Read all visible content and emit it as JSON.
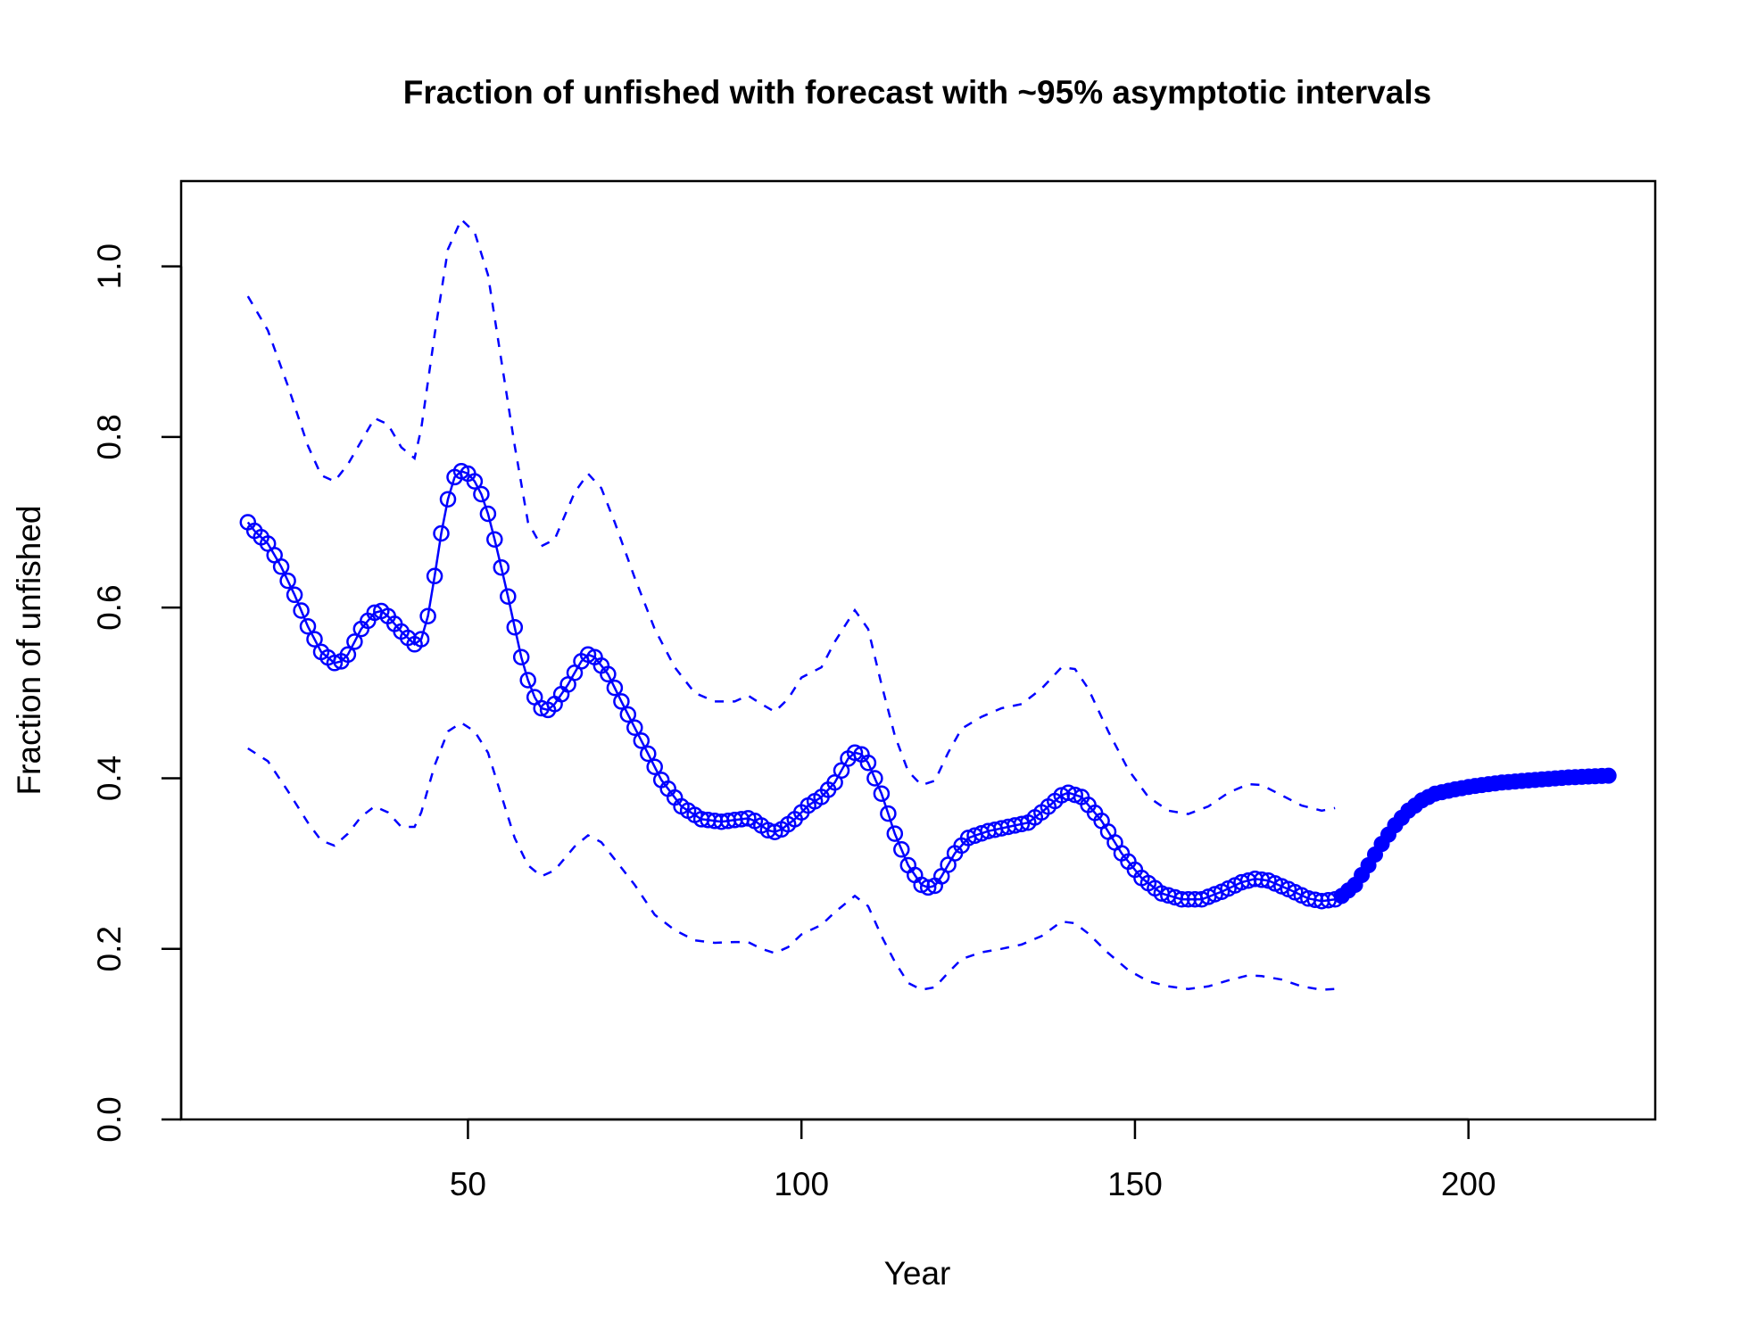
{
  "chart_data": {
    "type": "line",
    "title": "Fraction of unfished with forecast with ~95% asymptotic intervals",
    "xlabel": "Year",
    "ylabel": "Fraction of unfished",
    "xlim": [
      7,
      228
    ],
    "ylim": [
      0,
      1.1
    ],
    "x_ticks": [
      50,
      100,
      150,
      200
    ],
    "x_tick_labels": [
      "50",
      "100",
      "150",
      "200"
    ],
    "y_ticks": [
      0,
      0.2,
      0.4,
      0.6,
      0.8,
      1.0
    ],
    "y_tick_labels": [
      "0.0",
      "0.2",
      "0.4",
      "0.6",
      "0.8",
      "1.0"
    ],
    "grid": false,
    "color": "#0000FF",
    "series": [
      {
        "role": "estimate",
        "style": "line with open circles",
        "x_start": 17,
        "x_end": 180,
        "key_points": [
          [
            17,
            0.7
          ],
          [
            18,
            0.69
          ],
          [
            20,
            0.675
          ],
          [
            22,
            0.648
          ],
          [
            24,
            0.615
          ],
          [
            26,
            0.578
          ],
          [
            28,
            0.548
          ],
          [
            30,
            0.535
          ],
          [
            31,
            0.537
          ],
          [
            32,
            0.545
          ],
          [
            34,
            0.575
          ],
          [
            36,
            0.594
          ],
          [
            37,
            0.596
          ],
          [
            38,
            0.59
          ],
          [
            40,
            0.572
          ],
          [
            42,
            0.557
          ],
          [
            43,
            0.563
          ],
          [
            44,
            0.59
          ],
          [
            45,
            0.637
          ],
          [
            46,
            0.687
          ],
          [
            47,
            0.727
          ],
          [
            48,
            0.753
          ],
          [
            49,
            0.76
          ],
          [
            50,
            0.757
          ],
          [
            51,
            0.748
          ],
          [
            52,
            0.733
          ],
          [
            53,
            0.71
          ],
          [
            54,
            0.68
          ],
          [
            55,
            0.647
          ],
          [
            56,
            0.613
          ],
          [
            57,
            0.577
          ],
          [
            58,
            0.542
          ],
          [
            59,
            0.515
          ],
          [
            60,
            0.495
          ],
          [
            61,
            0.482
          ],
          [
            62,
            0.48
          ],
          [
            63,
            0.487
          ],
          [
            65,
            0.51
          ],
          [
            67,
            0.537
          ],
          [
            68,
            0.545
          ],
          [
            69,
            0.542
          ],
          [
            71,
            0.522
          ],
          [
            73,
            0.49
          ],
          [
            76,
            0.444
          ],
          [
            79,
            0.398
          ],
          [
            82,
            0.367
          ],
          [
            85,
            0.352
          ],
          [
            88,
            0.349
          ],
          [
            91,
            0.352
          ],
          [
            92,
            0.353
          ],
          [
            93,
            0.35
          ],
          [
            95,
            0.339
          ],
          [
            96,
            0.337
          ],
          [
            97,
            0.34
          ],
          [
            99,
            0.352
          ],
          [
            101,
            0.368
          ],
          [
            103,
            0.378
          ],
          [
            105,
            0.395
          ],
          [
            107,
            0.423
          ],
          [
            108,
            0.43
          ],
          [
            109,
            0.428
          ],
          [
            110,
            0.418
          ],
          [
            112,
            0.382
          ],
          [
            114,
            0.335
          ],
          [
            116,
            0.298
          ],
          [
            118,
            0.275
          ],
          [
            119,
            0.272
          ],
          [
            120,
            0.274
          ],
          [
            121,
            0.285
          ],
          [
            123,
            0.312
          ],
          [
            125,
            0.33
          ],
          [
            128,
            0.338
          ],
          [
            131,
            0.343
          ],
          [
            134,
            0.348
          ],
          [
            136,
            0.36
          ],
          [
            139,
            0.38
          ],
          [
            140,
            0.383
          ],
          [
            142,
            0.378
          ],
          [
            145,
            0.35
          ],
          [
            148,
            0.312
          ],
          [
            151,
            0.283
          ],
          [
            154,
            0.265
          ],
          [
            157,
            0.258
          ],
          [
            160,
            0.258
          ],
          [
            163,
            0.267
          ],
          [
            166,
            0.278
          ],
          [
            168,
            0.282
          ],
          [
            170,
            0.28
          ],
          [
            173,
            0.27
          ],
          [
            176,
            0.259
          ],
          [
            178,
            0.256
          ],
          [
            180,
            0.258
          ]
        ]
      },
      {
        "role": "forecast",
        "style": "filled points",
        "x_start": 181,
        "x_end": 221,
        "key_points": [
          [
            181,
            0.262
          ],
          [
            183,
            0.275
          ],
          [
            185,
            0.298
          ],
          [
            187,
            0.323
          ],
          [
            189,
            0.345
          ],
          [
            191,
            0.362
          ],
          [
            193,
            0.374
          ],
          [
            195,
            0.382
          ],
          [
            198,
            0.387
          ],
          [
            201,
            0.391
          ],
          [
            205,
            0.395
          ],
          [
            210,
            0.398
          ],
          [
            215,
            0.401
          ],
          [
            221,
            0.403
          ]
        ]
      },
      {
        "role": "upper interval (~97.5%)",
        "style": "dashed line",
        "key_points": [
          [
            17,
            0.965
          ],
          [
            20,
            0.925
          ],
          [
            23,
            0.86
          ],
          [
            26,
            0.79
          ],
          [
            28,
            0.755
          ],
          [
            30,
            0.748
          ],
          [
            32,
            0.768
          ],
          [
            34,
            0.795
          ],
          [
            36,
            0.822
          ],
          [
            38,
            0.815
          ],
          [
            40,
            0.788
          ],
          [
            42,
            0.775
          ],
          [
            43,
            0.81
          ],
          [
            45,
            0.92
          ],
          [
            47,
            1.02
          ],
          [
            49,
            1.055
          ],
          [
            51,
            1.04
          ],
          [
            53,
            0.99
          ],
          [
            55,
            0.89
          ],
          [
            57,
            0.79
          ],
          [
            59,
            0.7
          ],
          [
            61,
            0.672
          ],
          [
            63,
            0.68
          ],
          [
            66,
            0.735
          ],
          [
            68,
            0.757
          ],
          [
            70,
            0.74
          ],
          [
            72,
            0.7
          ],
          [
            75,
            0.635
          ],
          [
            78,
            0.575
          ],
          [
            81,
            0.53
          ],
          [
            84,
            0.5
          ],
          [
            87,
            0.49
          ],
          [
            90,
            0.49
          ],
          [
            92,
            0.497
          ],
          [
            94,
            0.487
          ],
          [
            96,
            0.478
          ],
          [
            98,
            0.493
          ],
          [
            100,
            0.518
          ],
          [
            103,
            0.53
          ],
          [
            105,
            0.56
          ],
          [
            108,
            0.597
          ],
          [
            110,
            0.575
          ],
          [
            112,
            0.51
          ],
          [
            114,
            0.45
          ],
          [
            116,
            0.408
          ],
          [
            118,
            0.392
          ],
          [
            120,
            0.397
          ],
          [
            122,
            0.43
          ],
          [
            124,
            0.458
          ],
          [
            127,
            0.472
          ],
          [
            130,
            0.482
          ],
          [
            133,
            0.487
          ],
          [
            136,
            0.505
          ],
          [
            139,
            0.53
          ],
          [
            141,
            0.528
          ],
          [
            143,
            0.505
          ],
          [
            146,
            0.455
          ],
          [
            149,
            0.41
          ],
          [
            152,
            0.378
          ],
          [
            155,
            0.362
          ],
          [
            158,
            0.358
          ],
          [
            161,
            0.367
          ],
          [
            164,
            0.383
          ],
          [
            167,
            0.393
          ],
          [
            169,
            0.392
          ],
          [
            172,
            0.38
          ],
          [
            175,
            0.368
          ],
          [
            178,
            0.362
          ],
          [
            180,
            0.365
          ]
        ]
      },
      {
        "role": "lower interval (~2.5%)",
        "style": "dashed line",
        "key_points": [
          [
            17,
            0.435
          ],
          [
            20,
            0.42
          ],
          [
            23,
            0.385
          ],
          [
            26,
            0.348
          ],
          [
            28,
            0.327
          ],
          [
            30,
            0.321
          ],
          [
            32,
            0.335
          ],
          [
            34,
            0.355
          ],
          [
            36,
            0.367
          ],
          [
            38,
            0.36
          ],
          [
            40,
            0.343
          ],
          [
            42,
            0.343
          ],
          [
            43,
            0.36
          ],
          [
            45,
            0.415
          ],
          [
            47,
            0.455
          ],
          [
            49,
            0.465
          ],
          [
            51,
            0.455
          ],
          [
            53,
            0.43
          ],
          [
            55,
            0.38
          ],
          [
            57,
            0.33
          ],
          [
            59,
            0.298
          ],
          [
            61,
            0.285
          ],
          [
            63,
            0.292
          ],
          [
            66,
            0.32
          ],
          [
            68,
            0.333
          ],
          [
            70,
            0.325
          ],
          [
            72,
            0.305
          ],
          [
            75,
            0.275
          ],
          [
            78,
            0.24
          ],
          [
            81,
            0.222
          ],
          [
            84,
            0.21
          ],
          [
            87,
            0.207
          ],
          [
            90,
            0.208
          ],
          [
            92,
            0.208
          ],
          [
            94,
            0.2
          ],
          [
            96,
            0.195
          ],
          [
            98,
            0.202
          ],
          [
            100,
            0.217
          ],
          [
            103,
            0.228
          ],
          [
            105,
            0.243
          ],
          [
            108,
            0.262
          ],
          [
            110,
            0.25
          ],
          [
            112,
            0.215
          ],
          [
            114,
            0.185
          ],
          [
            116,
            0.16
          ],
          [
            118,
            0.152
          ],
          [
            120,
            0.155
          ],
          [
            122,
            0.172
          ],
          [
            124,
            0.188
          ],
          [
            127,
            0.196
          ],
          [
            130,
            0.2
          ],
          [
            133,
            0.205
          ],
          [
            136,
            0.215
          ],
          [
            139,
            0.232
          ],
          [
            141,
            0.23
          ],
          [
            143,
            0.218
          ],
          [
            146,
            0.195
          ],
          [
            149,
            0.175
          ],
          [
            152,
            0.162
          ],
          [
            155,
            0.156
          ],
          [
            158,
            0.153
          ],
          [
            161,
            0.156
          ],
          [
            164,
            0.163
          ],
          [
            167,
            0.169
          ],
          [
            169,
            0.168
          ],
          [
            172,
            0.164
          ],
          [
            175,
            0.156
          ],
          [
            178,
            0.152
          ],
          [
            180,
            0.153
          ]
        ]
      }
    ]
  }
}
